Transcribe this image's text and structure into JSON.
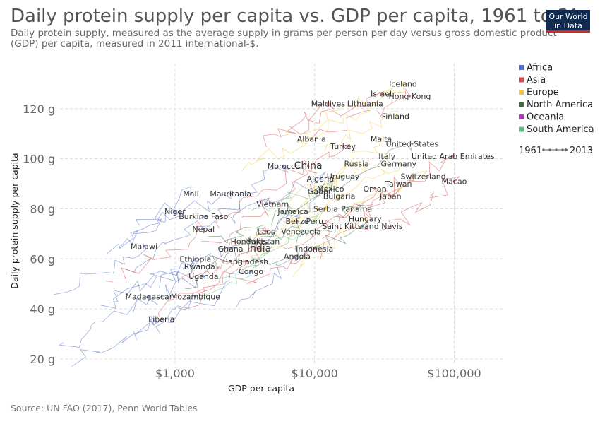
{
  "title": "Daily protein supply per capita vs. GDP per capita, 1961 to 2013",
  "subtitle_line1": "Daily protein supply, measured as the average supply in grams per person per day versus gross domestic product",
  "subtitle_line2": "(GDP) per capita, measured in 2011 international-$.",
  "logo_line1": "Our World",
  "logo_line2": "in Data",
  "source": "Source: UN FAO (2017), Penn World Tables",
  "colors": {
    "Africa": "#4c6ac6",
    "Asia": "#d6484f",
    "Europe": "#f4c93a",
    "North America": "#3c6d3b",
    "Oceania": "#a83fb6",
    "South America": "#5fbf84",
    "grid": "#dddddd"
  },
  "legend": {
    "items": [
      "Africa",
      "Asia",
      "Europe",
      "North America",
      "Oceania",
      "South America"
    ],
    "time_start": "1961",
    "time_end": "2013"
  },
  "chart_data": {
    "type": "scatter",
    "xlabel": "GDP per capita",
    "ylabel": "Daily protein supply per capita",
    "x_scale": "log",
    "xlim": [
      150,
      230000
    ],
    "ylim": [
      18,
      138
    ],
    "x_ticks": [
      {
        "value": 1000,
        "label": "$1,000"
      },
      {
        "value": 10000,
        "label": "$10,000"
      },
      {
        "value": 100000,
        "label": "$100,000"
      }
    ],
    "y_ticks": [
      {
        "value": 20,
        "label": "20 g"
      },
      {
        "value": 40,
        "label": "40 g"
      },
      {
        "value": 60,
        "label": "60 g"
      },
      {
        "value": 80,
        "label": "80 g"
      },
      {
        "value": 100,
        "label": "100 g"
      },
      {
        "value": 120,
        "label": "120 g"
      }
    ],
    "grid": true,
    "legend_position": "right",
    "labeled_points": [
      {
        "label": "Iceland",
        "x": 43000,
        "y": 130,
        "region": "Europe"
      },
      {
        "label": "Israel",
        "x": 30000,
        "y": 126,
        "region": "Asia"
      },
      {
        "label": "Hong Kong",
        "x": 48000,
        "y": 125,
        "region": "Asia"
      },
      {
        "label": "Maldives",
        "x": 12500,
        "y": 122,
        "region": "Asia"
      },
      {
        "label": "Lithuania",
        "x": 23000,
        "y": 122,
        "region": "Europe"
      },
      {
        "label": "Finland",
        "x": 38000,
        "y": 117,
        "region": "Europe"
      },
      {
        "label": "Albania",
        "x": 9500,
        "y": 108,
        "region": "Europe"
      },
      {
        "label": "Malta",
        "x": 30000,
        "y": 108,
        "region": "Europe"
      },
      {
        "label": "Turkey",
        "x": 16000,
        "y": 105,
        "region": "Asia"
      },
      {
        "label": "United States",
        "x": 50000,
        "y": 106,
        "region": "North America"
      },
      {
        "label": "Italy",
        "x": 33000,
        "y": 101,
        "region": "Europe"
      },
      {
        "label": "United Arab Emirates",
        "x": 98000,
        "y": 101,
        "region": "Asia"
      },
      {
        "label": "Germany",
        "x": 40000,
        "y": 98,
        "region": "Europe"
      },
      {
        "label": "Morocco",
        "x": 6000,
        "y": 97,
        "region": "Africa"
      },
      {
        "label": "China",
        "x": 9000,
        "y": 97,
        "region": "Asia"
      },
      {
        "label": "Russia",
        "x": 20000,
        "y": 98,
        "region": "Europe"
      },
      {
        "label": "Algeria",
        "x": 11000,
        "y": 92,
        "region": "Africa"
      },
      {
        "label": "Uruguay",
        "x": 16000,
        "y": 93,
        "region": "South America"
      },
      {
        "label": "Switzerland",
        "x": 60000,
        "y": 93,
        "region": "Europe"
      },
      {
        "label": "Macao",
        "x": 100000,
        "y": 91,
        "region": "Asia"
      },
      {
        "label": "Taiwan",
        "x": 40000,
        "y": 90,
        "region": "Asia"
      },
      {
        "label": "Mexico",
        "x": 13000,
        "y": 88,
        "region": "North America"
      },
      {
        "label": "Oman",
        "x": 27000,
        "y": 88,
        "region": "Asia"
      },
      {
        "label": "Gabon",
        "x": 11000,
        "y": 87,
        "region": "Africa"
      },
      {
        "label": "Mali",
        "x": 1300,
        "y": 86,
        "region": "Africa"
      },
      {
        "label": "Mauritania",
        "x": 2500,
        "y": 86,
        "region": "Africa"
      },
      {
        "label": "Bulgaria",
        "x": 15000,
        "y": 85,
        "region": "Europe"
      },
      {
        "label": "Japan",
        "x": 35000,
        "y": 85,
        "region": "Asia"
      },
      {
        "label": "Vietnam",
        "x": 5000,
        "y": 82,
        "region": "Asia"
      },
      {
        "label": "Serbia",
        "x": 12000,
        "y": 80,
        "region": "Europe"
      },
      {
        "label": "Panama",
        "x": 20000,
        "y": 80,
        "region": "North America"
      },
      {
        "label": "Niger",
        "x": 1000,
        "y": 79,
        "region": "Africa"
      },
      {
        "label": "Jamaica",
        "x": 7000,
        "y": 79,
        "region": "North America"
      },
      {
        "label": "Burkina Faso",
        "x": 1600,
        "y": 77,
        "region": "Africa"
      },
      {
        "label": "Belize",
        "x": 7500,
        "y": 75,
        "region": "North America"
      },
      {
        "label": "Peru",
        "x": 10000,
        "y": 75,
        "region": "South America"
      },
      {
        "label": "Hungary",
        "x": 23000,
        "y": 76,
        "region": "Europe"
      },
      {
        "label": "Saint Kitts and Nevis",
        "x": 22000,
        "y": 73,
        "region": "North America"
      },
      {
        "label": "Nepal",
        "x": 1600,
        "y": 72,
        "region": "Asia"
      },
      {
        "label": "Laos",
        "x": 4500,
        "y": 71,
        "region": "Asia"
      },
      {
        "label": "Venezuela",
        "x": 8000,
        "y": 71,
        "region": "South America"
      },
      {
        "label": "Honduras",
        "x": 3400,
        "y": 67,
        "region": "North America"
      },
      {
        "label": "Pakistan",
        "x": 4300,
        "y": 67,
        "region": "Asia"
      },
      {
        "label": "Malawi",
        "x": 600,
        "y": 65,
        "region": "Africa"
      },
      {
        "label": "Ghana",
        "x": 2500,
        "y": 64,
        "region": "Africa"
      },
      {
        "label": "India",
        "x": 4000,
        "y": 64,
        "region": "Asia"
      },
      {
        "label": "Indonesia",
        "x": 10000,
        "y": 64,
        "region": "Asia"
      },
      {
        "label": "Angola",
        "x": 7500,
        "y": 61,
        "region": "Africa"
      },
      {
        "label": "Ethiopia",
        "x": 1400,
        "y": 60,
        "region": "Africa"
      },
      {
        "label": "Bangladesh",
        "x": 3200,
        "y": 59,
        "region": "Asia"
      },
      {
        "label": "Rwanda",
        "x": 1500,
        "y": 57,
        "region": "Africa"
      },
      {
        "label": "Congo",
        "x": 3500,
        "y": 55,
        "region": "Africa"
      },
      {
        "label": "Uganda",
        "x": 1600,
        "y": 53,
        "region": "Africa"
      },
      {
        "label": "Madagascar",
        "x": 650,
        "y": 45,
        "region": "Africa"
      },
      {
        "label": "Mozambique",
        "x": 1400,
        "y": 45,
        "region": "Africa"
      },
      {
        "label": "Liberia",
        "x": 800,
        "y": 36,
        "region": "Africa"
      }
    ]
  }
}
